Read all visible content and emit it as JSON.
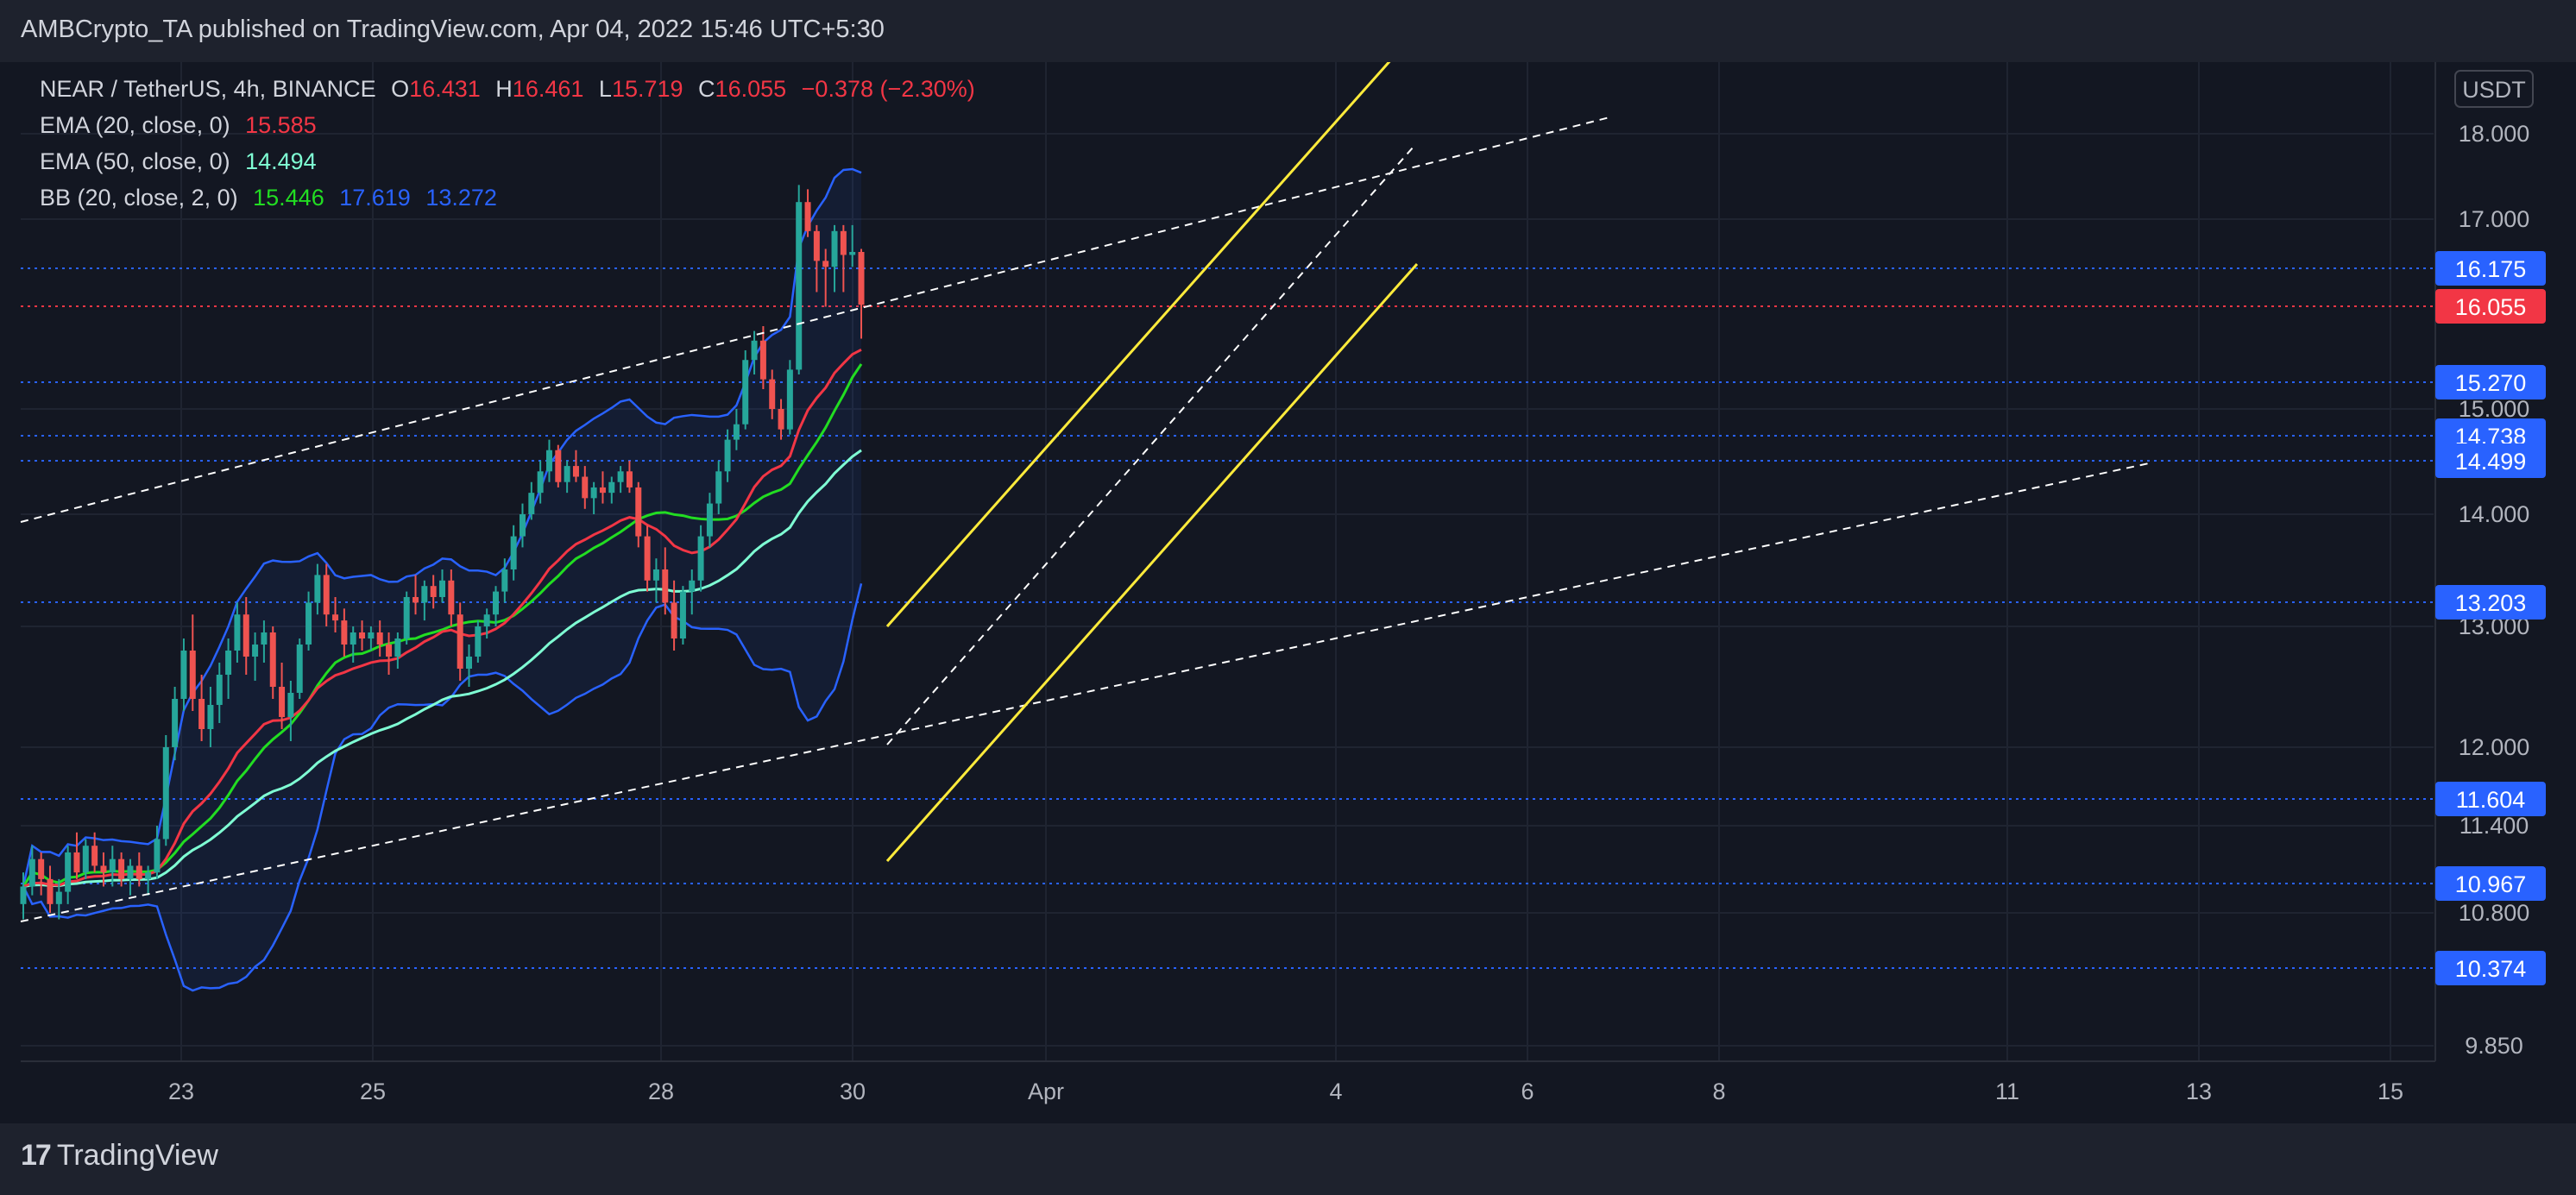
{
  "header": {
    "text": "AMBCrypto_TA published on TradingView.com, Apr 04, 2022 15:46 UTC+5:30"
  },
  "footer": {
    "logo_mark": "17",
    "logo_text": "TradingView"
  },
  "legend": {
    "symbol": "NEAR / TetherUS, 4h, BINANCE",
    "ohlc": {
      "o_label": "O",
      "o": "16.431",
      "h_label": "H",
      "h": "16.461",
      "l_label": "L",
      "l": "15.719",
      "c_label": "C",
      "c": "16.055",
      "change": "−0.378 (−2.30%)"
    },
    "ema20": {
      "label": "EMA (20, close, 0)",
      "value": "15.585",
      "color": "#f23645"
    },
    "ema50": {
      "label": "EMA (50, close, 0)",
      "value": "14.494",
      "color": "#7fffd4"
    },
    "bb": {
      "label": "BB (20, close, 2, 0)",
      "basis": "15.446",
      "upper": "17.619",
      "lower": "13.272",
      "basis_color": "#22dd22",
      "band_color": "#2962ff"
    }
  },
  "colors": {
    "up": "#26a69a",
    "down": "#ef5350",
    "channel": "#ffeb3b",
    "trend": "#ffffff",
    "level": "#2962ff",
    "price_tag": "#f23645"
  },
  "chart_data": {
    "type": "candlestick",
    "currency": "USDT",
    "y_axis": {
      "scale": "nonlinear (as printed)",
      "ticks": [
        "18.000",
        "17.000",
        "15.000",
        "14.000",
        "13.000",
        "12.000",
        "11.400",
        "10.800",
        "9.850"
      ],
      "tick_values": [
        18.0,
        17.0,
        15.0,
        14.0,
        13.0,
        12.0,
        11.4,
        10.8,
        9.85
      ]
    },
    "x_axis": {
      "ticks": [
        "23",
        "25",
        "28",
        "30",
        "Apr",
        "4",
        "6",
        "8",
        "11",
        "13",
        "15"
      ]
    },
    "levels": [
      {
        "value": 16.175,
        "label": "16.175",
        "kind": "level"
      },
      {
        "value": 16.055,
        "label": "16.055",
        "kind": "last-price"
      },
      {
        "value": 15.27,
        "label": "15.270",
        "kind": "level"
      },
      {
        "value": 14.738,
        "label": "14.738",
        "kind": "level"
      },
      {
        "value": 14.499,
        "label": "14.499",
        "kind": "level"
      },
      {
        "value": 13.203,
        "label": "13.203",
        "kind": "level"
      },
      {
        "value": 11.604,
        "label": "11.604",
        "kind": "level"
      },
      {
        "value": 10.967,
        "label": "10.967",
        "kind": "level"
      },
      {
        "value": 10.374,
        "label": "10.374",
        "kind": "level"
      }
    ],
    "candles": [
      [
        10.85,
        11.05,
        10.75,
        10.95
      ],
      [
        10.95,
        11.25,
        10.9,
        11.15
      ],
      [
        11.15,
        11.2,
        10.9,
        11.0
      ],
      [
        11.0,
        11.1,
        10.8,
        10.85
      ],
      [
        10.85,
        11.0,
        10.75,
        10.92
      ],
      [
        10.92,
        11.25,
        10.85,
        11.2
      ],
      [
        11.2,
        11.35,
        11.0,
        11.05
      ],
      [
        11.05,
        11.3,
        11.0,
        11.25
      ],
      [
        11.25,
        11.35,
        11.05,
        11.1
      ],
      [
        11.1,
        11.2,
        10.95,
        11.05
      ],
      [
        11.05,
        11.25,
        10.95,
        11.15
      ],
      [
        11.15,
        11.2,
        10.95,
        11.0
      ],
      [
        11.0,
        11.15,
        10.9,
        11.1
      ],
      [
        11.1,
        11.2,
        10.95,
        11.0
      ],
      [
        11.0,
        11.1,
        10.9,
        11.05
      ],
      [
        11.05,
        11.4,
        11.0,
        11.3
      ],
      [
        11.3,
        12.1,
        11.25,
        12.0
      ],
      [
        12.0,
        12.5,
        11.9,
        12.4
      ],
      [
        12.4,
        12.9,
        12.3,
        12.8
      ],
      [
        12.8,
        13.1,
        12.3,
        12.4
      ],
      [
        12.4,
        12.6,
        12.05,
        12.15
      ],
      [
        12.15,
        12.5,
        12.0,
        12.35
      ],
      [
        12.35,
        12.7,
        12.2,
        12.6
      ],
      [
        12.6,
        12.9,
        12.4,
        12.8
      ],
      [
        12.8,
        13.2,
        12.7,
        13.1
      ],
      [
        13.1,
        13.25,
        12.6,
        12.75
      ],
      [
        12.75,
        12.95,
        12.55,
        12.85
      ],
      [
        12.85,
        13.05,
        12.7,
        12.95
      ],
      [
        12.95,
        13.0,
        12.4,
        12.5
      ],
      [
        12.5,
        12.7,
        12.15,
        12.25
      ],
      [
        12.25,
        12.55,
        12.05,
        12.45
      ],
      [
        12.45,
        12.9,
        12.4,
        12.85
      ],
      [
        12.85,
        13.3,
        12.8,
        13.2
      ],
      [
        13.2,
        13.55,
        13.1,
        13.45
      ],
      [
        13.45,
        13.55,
        13.0,
        13.1
      ],
      [
        13.1,
        13.25,
        12.95,
        13.05
      ],
      [
        13.05,
        13.15,
        12.75,
        12.85
      ],
      [
        12.85,
        13.0,
        12.7,
        12.95
      ],
      [
        12.95,
        13.05,
        12.8,
        12.9
      ],
      [
        12.9,
        13.0,
        12.8,
        12.95
      ],
      [
        12.95,
        13.05,
        12.75,
        12.85
      ],
      [
        12.85,
        12.95,
        12.6,
        12.75
      ],
      [
        12.75,
        12.95,
        12.65,
        12.9
      ],
      [
        12.9,
        13.3,
        12.85,
        13.25
      ],
      [
        13.25,
        13.45,
        13.1,
        13.2
      ],
      [
        13.2,
        13.4,
        13.05,
        13.35
      ],
      [
        13.35,
        13.45,
        13.15,
        13.25
      ],
      [
        13.25,
        13.5,
        13.2,
        13.4
      ],
      [
        13.4,
        13.5,
        13.0,
        13.1
      ],
      [
        13.1,
        13.2,
        12.55,
        12.65
      ],
      [
        12.65,
        12.85,
        12.5,
        12.75
      ],
      [
        12.75,
        13.05,
        12.7,
        13.0
      ],
      [
        13.0,
        13.15,
        12.9,
        13.1
      ],
      [
        13.1,
        13.35,
        13.0,
        13.3
      ],
      [
        13.3,
        13.6,
        13.2,
        13.5
      ],
      [
        13.5,
        13.9,
        13.4,
        13.8
      ],
      [
        13.8,
        14.1,
        13.7,
        14.0
      ],
      [
        14.0,
        14.3,
        13.95,
        14.2
      ],
      [
        14.2,
        14.5,
        14.1,
        14.4
      ],
      [
        14.4,
        14.7,
        14.3,
        14.6
      ],
      [
        14.6,
        14.65,
        14.25,
        14.3
      ],
      [
        14.3,
        14.5,
        14.2,
        14.45
      ],
      [
        14.45,
        14.6,
        14.3,
        14.35
      ],
      [
        14.35,
        14.45,
        14.05,
        14.15
      ],
      [
        14.15,
        14.3,
        14.0,
        14.25
      ],
      [
        14.25,
        14.4,
        14.1,
        14.2
      ],
      [
        14.2,
        14.35,
        14.1,
        14.3
      ],
      [
        14.3,
        14.45,
        14.2,
        14.4
      ],
      [
        14.4,
        14.5,
        14.2,
        14.25
      ],
      [
        14.25,
        14.3,
        13.7,
        13.8
      ],
      [
        13.8,
        13.9,
        13.3,
        13.4
      ],
      [
        13.4,
        13.6,
        13.2,
        13.5
      ],
      [
        13.5,
        13.7,
        13.1,
        13.2
      ],
      [
        13.2,
        13.4,
        12.8,
        12.9
      ],
      [
        12.9,
        13.35,
        12.85,
        13.3
      ],
      [
        13.3,
        13.5,
        13.1,
        13.4
      ],
      [
        13.4,
        13.9,
        13.3,
        13.8
      ],
      [
        13.8,
        14.2,
        13.7,
        14.1
      ],
      [
        14.1,
        14.5,
        14.0,
        14.4
      ],
      [
        14.4,
        14.8,
        14.3,
        14.7
      ],
      [
        14.7,
        15.0,
        14.6,
        14.85
      ],
      [
        14.85,
        15.6,
        14.8,
        15.5
      ],
      [
        15.5,
        15.8,
        15.35,
        15.7
      ],
      [
        15.7,
        15.85,
        15.2,
        15.3
      ],
      [
        15.3,
        15.4,
        14.9,
        15.0
      ],
      [
        15.0,
        15.1,
        14.7,
        14.8
      ],
      [
        14.8,
        15.5,
        14.75,
        15.4
      ],
      [
        15.4,
        17.4,
        15.35,
        17.2
      ],
      [
        17.2,
        17.35,
        16.7,
        16.8
      ],
      [
        16.8,
        16.9,
        16.1,
        16.3
      ],
      [
        16.3,
        16.5,
        16.05,
        16.2
      ],
      [
        16.2,
        16.9,
        16.1,
        16.8
      ],
      [
        16.8,
        16.9,
        16.1,
        16.4
      ],
      [
        16.4,
        16.9,
        16.2,
        16.45
      ],
      [
        16.45,
        16.5,
        15.72,
        16.06
      ]
    ]
  }
}
